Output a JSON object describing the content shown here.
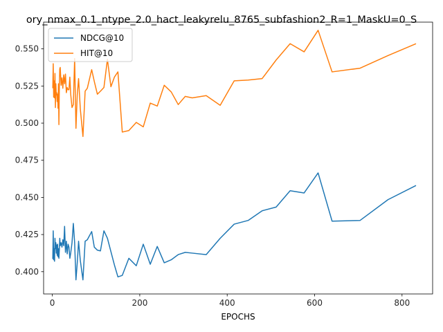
{
  "chart_data": {
    "type": "line",
    "title": "ory_nmax_0.1_ntype_2.0_hact_leakyrelu_8765_subfashion2_R=1_MaskU=0_S",
    "xlabel": "EPOCHS",
    "ylabel": "",
    "xlim": [
      -20,
      870
    ],
    "ylim": [
      0.385,
      0.568
    ],
    "xticks": [
      0,
      200,
      400,
      600,
      800
    ],
    "yticks": [
      0.4,
      0.425,
      0.45,
      0.475,
      0.5,
      0.525,
      0.55
    ],
    "ytick_labels": [
      "0.400",
      "0.425",
      "0.450",
      "0.475",
      "0.500",
      "0.525",
      "0.550"
    ],
    "grid": false,
    "legend_position": "upper-left",
    "series": [
      {
        "name": "NDCG@10",
        "color": "#1f77b4",
        "x": [
          1,
          2,
          3,
          4,
          5,
          6,
          7,
          8,
          9,
          10,
          11,
          12,
          13,
          14,
          15,
          16,
          17,
          18,
          20,
          22,
          24,
          26,
          28,
          30,
          32,
          34,
          36,
          38,
          40,
          42,
          45,
          48,
          51,
          54,
          57,
          60,
          64,
          70,
          75,
          80,
          90,
          96,
          103,
          110,
          118,
          126,
          134,
          142,
          150,
          160,
          175,
          192,
          208,
          224,
          240,
          256,
          272,
          288,
          304,
          320,
          352,
          384,
          416,
          448,
          480,
          512,
          544,
          576,
          608,
          640,
          704,
          768,
          832
        ],
        "y": [
          0.4085,
          0.4275,
          0.408,
          0.4155,
          0.407,
          0.4225,
          0.4155,
          0.4195,
          0.4125,
          0.418,
          0.411,
          0.4185,
          0.41,
          0.4155,
          0.409,
          0.415,
          0.4225,
          0.4175,
          0.4195,
          0.4165,
          0.4215,
          0.4175,
          0.4305,
          0.413,
          0.4205,
          0.412,
          0.4185,
          0.4165,
          0.409,
          0.4125,
          0.4195,
          0.4325,
          0.4195,
          0.3945,
          0.406,
          0.4205,
          0.4075,
          0.3945,
          0.4205,
          0.4215,
          0.427,
          0.4165,
          0.4145,
          0.414,
          0.4275,
          0.4225,
          0.4135,
          0.4045,
          0.3965,
          0.3975,
          0.409,
          0.404,
          0.4185,
          0.405,
          0.417,
          0.406,
          0.408,
          0.4115,
          0.413,
          0.4125,
          0.4115,
          0.4225,
          0.432,
          0.4345,
          0.441,
          0.4435,
          0.4545,
          0.453,
          0.4665,
          0.434,
          0.4345,
          0.4485,
          0.458
        ]
      },
      {
        "name": "HIT@10",
        "color": "#ff7f0e",
        "x": [
          1,
          2,
          3,
          4,
          5,
          6,
          7,
          8,
          9,
          10,
          11,
          12,
          13,
          14,
          15,
          16,
          17,
          18,
          20,
          22,
          24,
          26,
          28,
          30,
          32,
          34,
          36,
          38,
          40,
          42,
          45,
          48,
          51,
          54,
          57,
          60,
          64,
          70,
          75,
          80,
          90,
          96,
          103,
          110,
          118,
          126,
          134,
          142,
          150,
          160,
          175,
          192,
          208,
          224,
          240,
          256,
          272,
          288,
          304,
          320,
          352,
          384,
          416,
          448,
          480,
          512,
          544,
          576,
          608,
          640,
          704,
          768,
          832
        ],
        "y": [
          0.5235,
          0.54,
          0.5175,
          0.5285,
          0.517,
          0.5335,
          0.5105,
          0.5265,
          0.519,
          0.5205,
          0.5145,
          0.5195,
          0.51,
          0.5265,
          0.499,
          0.525,
          0.5365,
          0.5375,
          0.5255,
          0.5305,
          0.5235,
          0.5325,
          0.5265,
          0.533,
          0.5205,
          0.524,
          0.5225,
          0.5225,
          0.531,
          0.5195,
          0.5105,
          0.5125,
          0.5435,
          0.4965,
          0.519,
          0.53,
          0.5095,
          0.491,
          0.5215,
          0.5235,
          0.536,
          0.528,
          0.5195,
          0.5215,
          0.524,
          0.543,
          0.5245,
          0.531,
          0.5345,
          0.494,
          0.495,
          0.5005,
          0.4975,
          0.5135,
          0.5115,
          0.5255,
          0.521,
          0.5125,
          0.518,
          0.517,
          0.5185,
          0.512,
          0.5285,
          0.529,
          0.53,
          0.5425,
          0.5535,
          0.548,
          0.5625,
          0.5345,
          0.537,
          0.5455,
          0.5535
        ]
      }
    ]
  }
}
